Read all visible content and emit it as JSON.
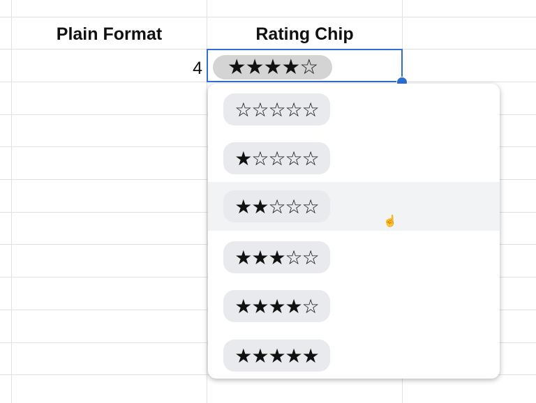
{
  "columns": {
    "plain_format": "Plain Format",
    "rating_chip": "Rating Chip"
  },
  "row1": {
    "plain_value": "4",
    "rating_chip": "★★★★☆",
    "rating": 4
  },
  "dropdown": {
    "options": [
      {
        "label": "☆☆☆☆☆",
        "rating": 0
      },
      {
        "label": "★☆☆☆☆",
        "rating": 1
      },
      {
        "label": "★★☆☆☆",
        "rating": 2
      },
      {
        "label": "★★★☆☆",
        "rating": 3
      },
      {
        "label": "★★★★☆",
        "rating": 4
      },
      {
        "label": "★★★★★",
        "rating": 5
      }
    ],
    "hovered_index": 2
  },
  "colors": {
    "selection": "#2f6fd0",
    "hover": "#f1f3f4",
    "chip": "#e8eaed"
  },
  "cursor_icon": "hand-pointer-icon"
}
